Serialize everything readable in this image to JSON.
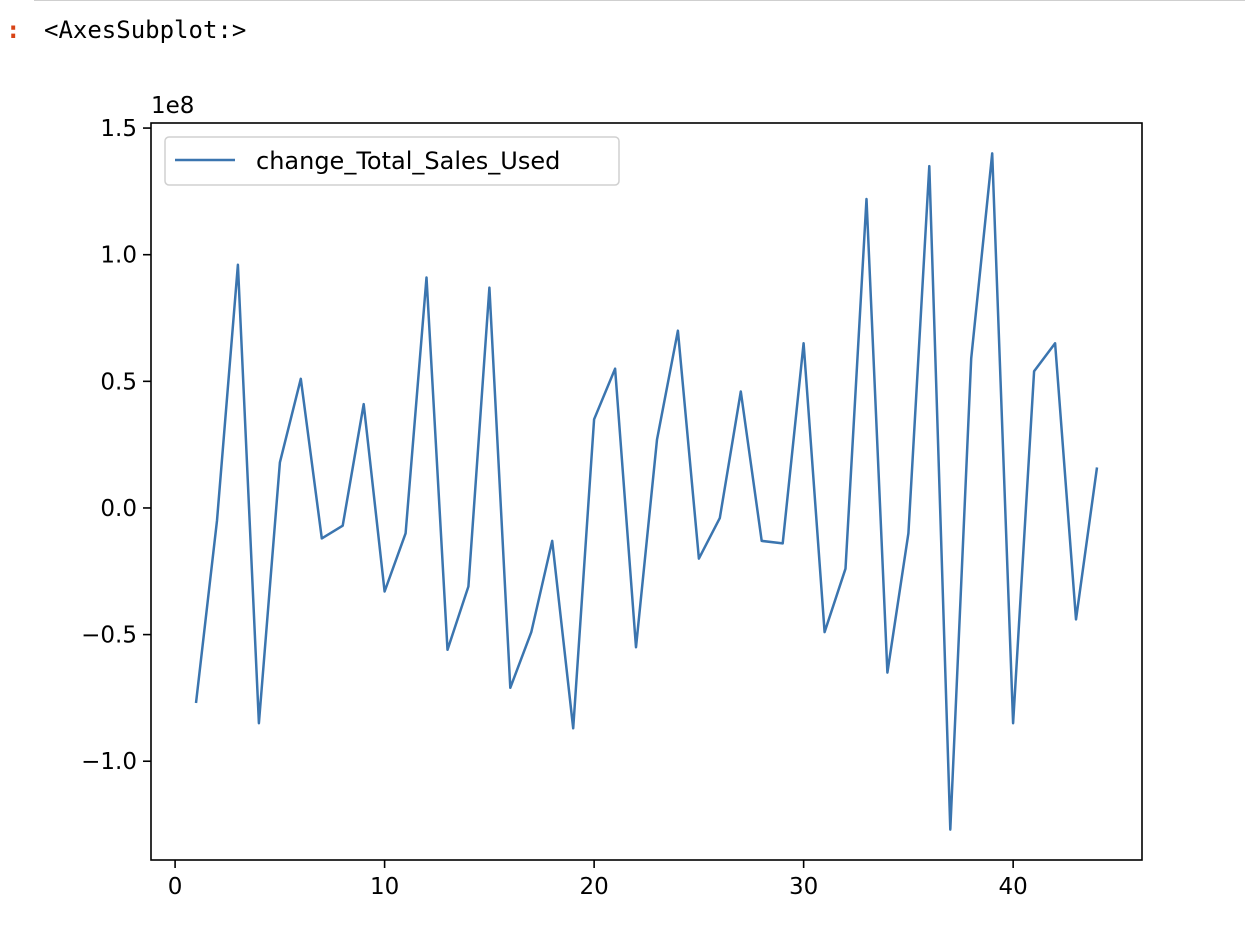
{
  "output": {
    "prompt": ":",
    "text": "<AxesSubplot:>"
  },
  "chart_data": {
    "type": "line",
    "title": "",
    "xlabel": "",
    "ylabel": "",
    "offset_label": "1e8",
    "xlim": [
      -1.15,
      46.15
    ],
    "ylim": [
      -1.39,
      1.52
    ],
    "xticks": [
      0,
      10,
      20,
      30,
      40
    ],
    "xtick_labels": [
      "0",
      "10",
      "20",
      "30",
      "40"
    ],
    "yticks": [
      -1.0,
      -0.5,
      0.0,
      0.5,
      1.0,
      1.5
    ],
    "ytick_labels": [
      "−1.0",
      "−0.5",
      "0.0",
      "0.5",
      "1.0",
      "1.5"
    ],
    "legend_position": "upper left",
    "grid": false,
    "colors": {
      "line": "#3b75af"
    },
    "series": [
      {
        "name": "change_Total_Sales_Used",
        "x": [
          1,
          2,
          3,
          4,
          5,
          6,
          7,
          8,
          9,
          10,
          11,
          12,
          13,
          14,
          15,
          16,
          17,
          18,
          19,
          20,
          21,
          22,
          23,
          24,
          25,
          26,
          27,
          28,
          29,
          30,
          31,
          32,
          33,
          34,
          35,
          36,
          37,
          38,
          39,
          40,
          41,
          42,
          43,
          44
        ],
        "values": [
          -0.77,
          -0.05,
          0.96,
          -0.85,
          0.18,
          0.51,
          -0.12,
          -0.07,
          0.41,
          -0.33,
          -0.1,
          0.91,
          -0.56,
          -0.31,
          0.87,
          -0.71,
          -0.49,
          -0.13,
          -0.87,
          0.35,
          0.55,
          -0.55,
          0.27,
          0.7,
          -0.2,
          -0.04,
          0.46,
          -0.13,
          -0.14,
          0.65,
          -0.49,
          -0.24,
          1.22,
          -0.65,
          -0.1,
          1.35,
          -1.27,
          0.59,
          1.4,
          -0.85,
          0.54,
          0.65,
          -0.44,
          0.16
        ]
      }
    ]
  }
}
